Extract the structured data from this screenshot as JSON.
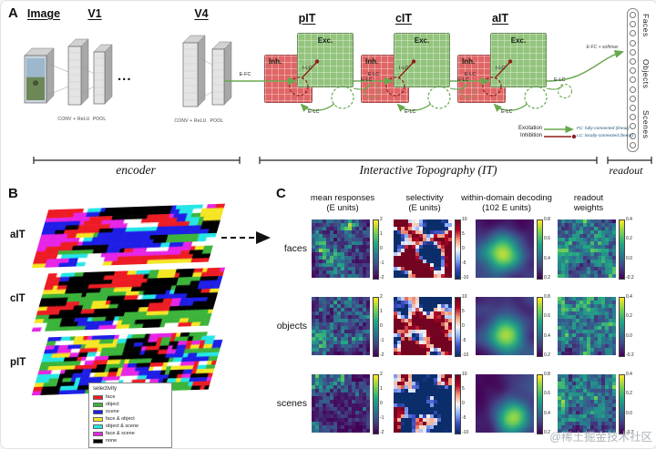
{
  "figure": {
    "panel_a_label": "A",
    "panel_b_label": "B",
    "panel_c_label": "C",
    "watermark": "@稀土掘金技术社区"
  },
  "panel_a": {
    "headers": {
      "image": "Image",
      "v1": "V1",
      "v4": "V4"
    },
    "layer_captions": [
      "CONV + ReLU",
      "POOL",
      "CONV + ReLU",
      "POOL"
    ],
    "ellipsis": "...",
    "modules": [
      {
        "title": "pIT",
        "inh_label": "Inh.",
        "exc_label": "Exc.",
        "input_label": "E-FC",
        "conn_labels": {
          "ilc": "I-LC",
          "elc_bottom": "E-LC",
          "elc_out": "E-LC"
        }
      },
      {
        "title": "cIT",
        "inh_label": "Inh.",
        "exc_label": "Exc.",
        "input_label": "E-LC",
        "conn_labels": {
          "ilc": "I-LC",
          "elc_bottom": "E-LC",
          "elc_out": "E-LC"
        }
      },
      {
        "title": "aIT",
        "inh_label": "Inh.",
        "exc_label": "Exc.",
        "input_label": "E-LC",
        "conn_labels": {
          "ilc": "I-LC",
          "elc_bottom": "E-LC",
          "elc_out": "E-LC"
        }
      }
    ],
    "readout": {
      "classes": [
        "Faces",
        "Objects",
        "Scenes"
      ],
      "output_label": "E-FC + softmax",
      "n_units": 15
    },
    "legend": {
      "excitation": "Excitation",
      "inhibition": "Inhibition",
      "fc_note": "FC: fully-connected (linear)",
      "lc_note": "LC: locally-connected (linear)"
    },
    "brackets": {
      "encoder": "encoder",
      "it": "Interactive Topography (IT)",
      "readout": "readout"
    },
    "colors": {
      "excitation": "#6aa84f",
      "inhibition": "#8f1d1d",
      "exc_box": "#93c47d",
      "inh_box": "#e06666"
    }
  },
  "panel_b": {
    "maps": [
      {
        "label": "aIT",
        "seed": 101,
        "smooth": 5
      },
      {
        "label": "cIT",
        "seed": 202,
        "smooth": 3
      },
      {
        "label": "pIT",
        "seed": 303,
        "smooth": 1
      }
    ],
    "legend": {
      "title": "selectivity",
      "entries": [
        {
          "label": "face",
          "color": "#ed1c24"
        },
        {
          "label": "object",
          "color": "#3cb43c"
        },
        {
          "label": "scene",
          "color": "#1e1ee6"
        },
        {
          "label": "face & object",
          "color": "#f5e625"
        },
        {
          "label": "object & scene",
          "color": "#25e6e6"
        },
        {
          "label": "face & scene",
          "color": "#e625e6"
        },
        {
          "label": "none",
          "color": "#000000"
        }
      ]
    }
  },
  "panel_c": {
    "row_labels": [
      "faces",
      "objects",
      "scenes"
    ],
    "columns": [
      {
        "title": "mean responses",
        "subtitle": "(E units)",
        "palette": "viridis",
        "style": "noisy",
        "ticks": [
          "2",
          "1",
          "0",
          "-1",
          "-2"
        ]
      },
      {
        "title": "selectivity",
        "subtitle": "(E units)",
        "palette": "coolwarm",
        "style": "patches",
        "ticks": [
          "10",
          "5",
          "0",
          "-5",
          "-10"
        ]
      },
      {
        "title": "within-domain decoding",
        "subtitle": "(102 E units)",
        "palette": "viridis",
        "style": "smooth",
        "ticks": [
          "0.8",
          "0.6",
          "0.4",
          "0.2"
        ]
      },
      {
        "title": "readout",
        "subtitle": "weights",
        "palette": "viridis",
        "style": "noisy2",
        "ticks": [
          "0.4",
          "0.2",
          "0.0",
          "-0.2"
        ]
      }
    ],
    "cell_seeds": [
      [
        11,
        12,
        13,
        14
      ],
      [
        21,
        22,
        23,
        24
      ],
      [
        31,
        32,
        33,
        34
      ]
    ]
  },
  "palettes": {
    "viridis": [
      "#440154",
      "#414487",
      "#2a788e",
      "#22a884",
      "#7ad151",
      "#fde725"
    ],
    "coolwarm": [
      "#0b2e6b",
      "#3b4cc0",
      "#8caffe",
      "#f6f6f6",
      "#f49a7b",
      "#b40426",
      "#730421"
    ]
  }
}
